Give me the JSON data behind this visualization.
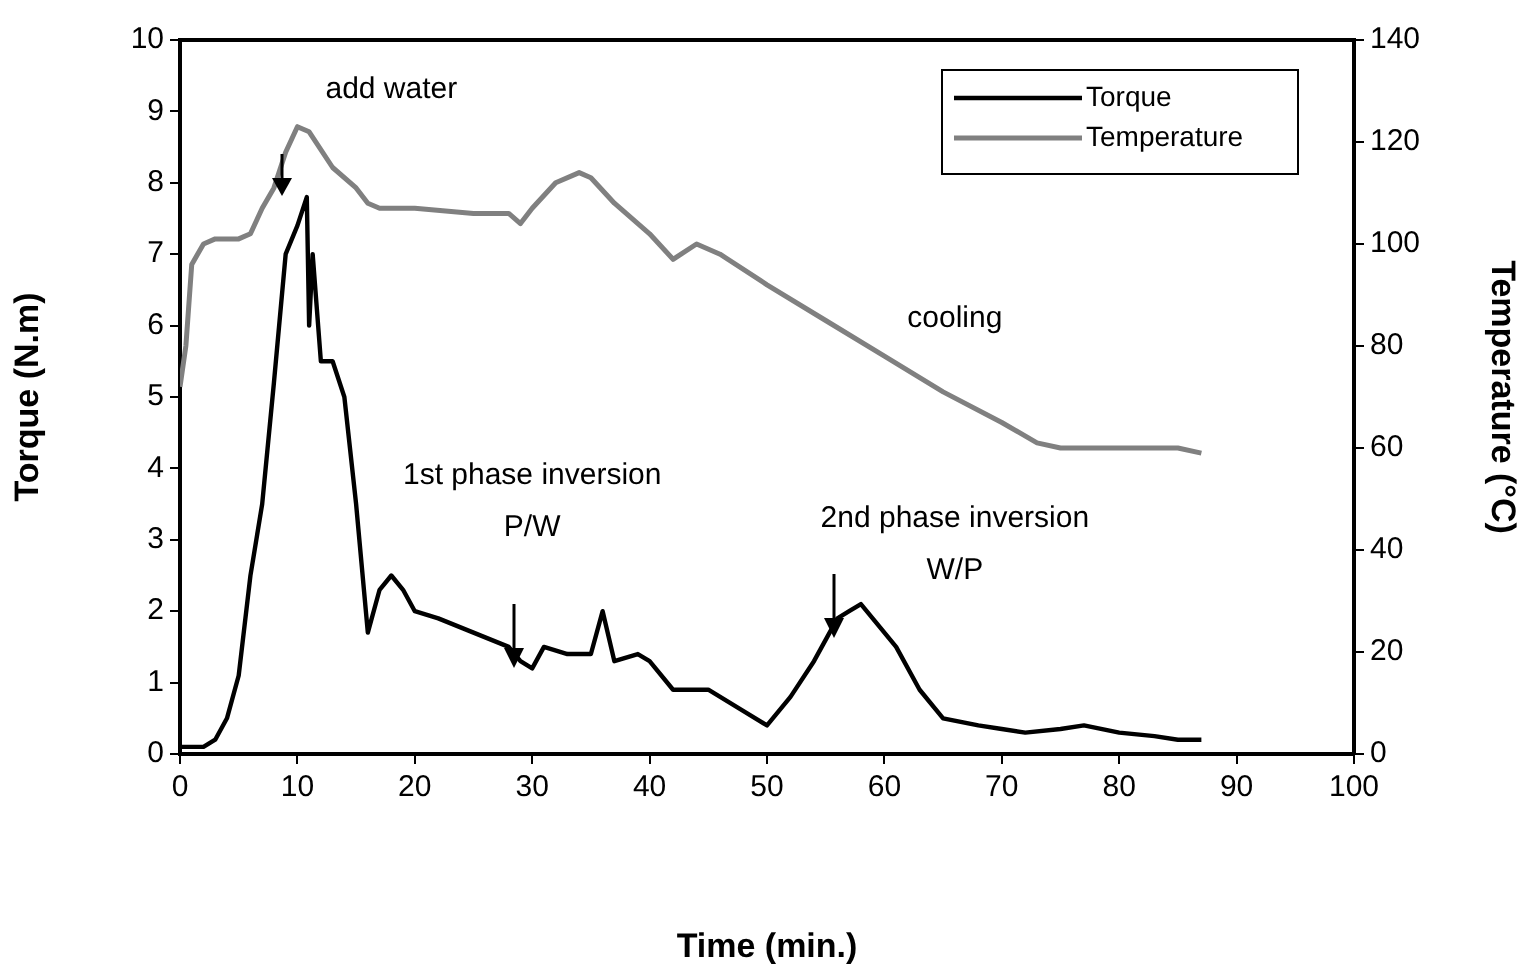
{
  "chart_data": {
    "type": "line",
    "xlabel": "Time (min.)",
    "ylabel": "Torque (N.m)",
    "y2label": "Temperature (°C)",
    "xlim": [
      0,
      100
    ],
    "xticks": [
      0,
      10,
      20,
      30,
      40,
      50,
      60,
      70,
      80,
      90,
      100
    ],
    "ylim": [
      0,
      10
    ],
    "yticks": [
      0,
      1,
      2,
      3,
      4,
      5,
      6,
      7,
      8,
      9,
      10
    ],
    "y2lim": [
      0,
      140
    ],
    "y2ticks": [
      0,
      20,
      40,
      60,
      80,
      100,
      120,
      140
    ],
    "legend": "top right",
    "grid": false,
    "marker": "none",
    "line_style": "solid",
    "series": [
      {
        "name": "Torque",
        "color": "#000000",
        "x": [
          0,
          2,
          3,
          4,
          5,
          6,
          7,
          8,
          9,
          10,
          10.8,
          11,
          11.3,
          12,
          13,
          14,
          15,
          16,
          17,
          18,
          19,
          20,
          22,
          25,
          28,
          29,
          30,
          31,
          33,
          35,
          36,
          37,
          39,
          40,
          42,
          45,
          48,
          50,
          52,
          54,
          56,
          57,
          58,
          59,
          61,
          63,
          65,
          68,
          70,
          72,
          75,
          77,
          80,
          83,
          85,
          87
        ],
        "values": [
          0.1,
          0.1,
          0.2,
          0.5,
          1.1,
          2.5,
          3.5,
          5.2,
          7.0,
          7.4,
          7.8,
          6.0,
          7.0,
          5.5,
          5.5,
          5.0,
          3.5,
          1.7,
          2.3,
          2.5,
          2.3,
          2.0,
          1.9,
          1.7,
          1.5,
          1.3,
          1.2,
          1.5,
          1.4,
          1.4,
          2.0,
          1.3,
          1.4,
          1.3,
          0.9,
          0.9,
          0.6,
          0.4,
          0.8,
          1.3,
          1.9,
          2.0,
          2.1,
          1.9,
          1.5,
          0.9,
          0.5,
          0.4,
          0.35,
          0.3,
          0.35,
          0.4,
          0.3,
          0.25,
          0.2,
          0.2
        ]
      },
      {
        "name": "Temperature",
        "color": "#808080",
        "axis": "y2",
        "x": [
          0,
          0.5,
          1,
          2,
          3,
          5,
          6,
          7,
          8,
          9,
          10,
          11,
          13,
          15,
          16,
          17,
          20,
          25,
          28,
          29,
          30,
          32,
          34,
          35,
          37,
          40,
          42,
          44,
          46,
          50,
          55,
          60,
          65,
          70,
          73,
          75,
          80,
          85,
          87
        ],
        "values": [
          72,
          80,
          96,
          100,
          101,
          101,
          102,
          107,
          111,
          118,
          123,
          122,
          115,
          111,
          108,
          107,
          107,
          106,
          106,
          104,
          107,
          112,
          114,
          113,
          108,
          102,
          97,
          100,
          98,
          92,
          85,
          78,
          71,
          65,
          61,
          60,
          60,
          60,
          59
        ]
      }
    ],
    "annotations": [
      "add water",
      "1st phase inversion\nP/W",
      "cooling",
      "2nd phase inversion\nW/P"
    ]
  }
}
